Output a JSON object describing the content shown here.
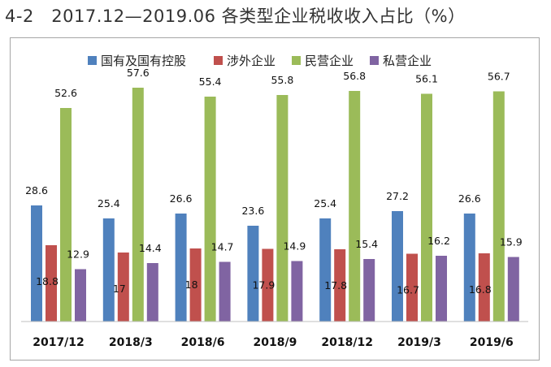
{
  "title": "4-2　2017.12—2019.06 各类型企业税收收入占比（%）",
  "chart_data": {
    "type": "bar",
    "categories": [
      "2017/12",
      "2018/3",
      "2018/6",
      "2018/9",
      "2018/12",
      "2019/3",
      "2019/6"
    ],
    "series": [
      {
        "name": "国有及国有控股",
        "color": "#4f81bd",
        "values": [
          28.6,
          25.4,
          26.6,
          23.6,
          25.4,
          27.2,
          26.6
        ]
      },
      {
        "name": "涉外企业",
        "color": "#c0504d",
        "values": [
          18.8,
          17,
          18,
          17.9,
          17.8,
          16.7,
          16.8
        ]
      },
      {
        "name": "民营企业",
        "color": "#9bbb59",
        "values": [
          52.6,
          57.6,
          55.4,
          55.8,
          56.8,
          56.1,
          56.7
        ]
      },
      {
        "name": "私营企业",
        "color": "#8064a2",
        "values": [
          12.9,
          14.4,
          14.7,
          14.9,
          15.4,
          16.2,
          15.9
        ]
      }
    ],
    "ylim": [
      0,
      60
    ],
    "grid": false,
    "legend": "top-center"
  }
}
